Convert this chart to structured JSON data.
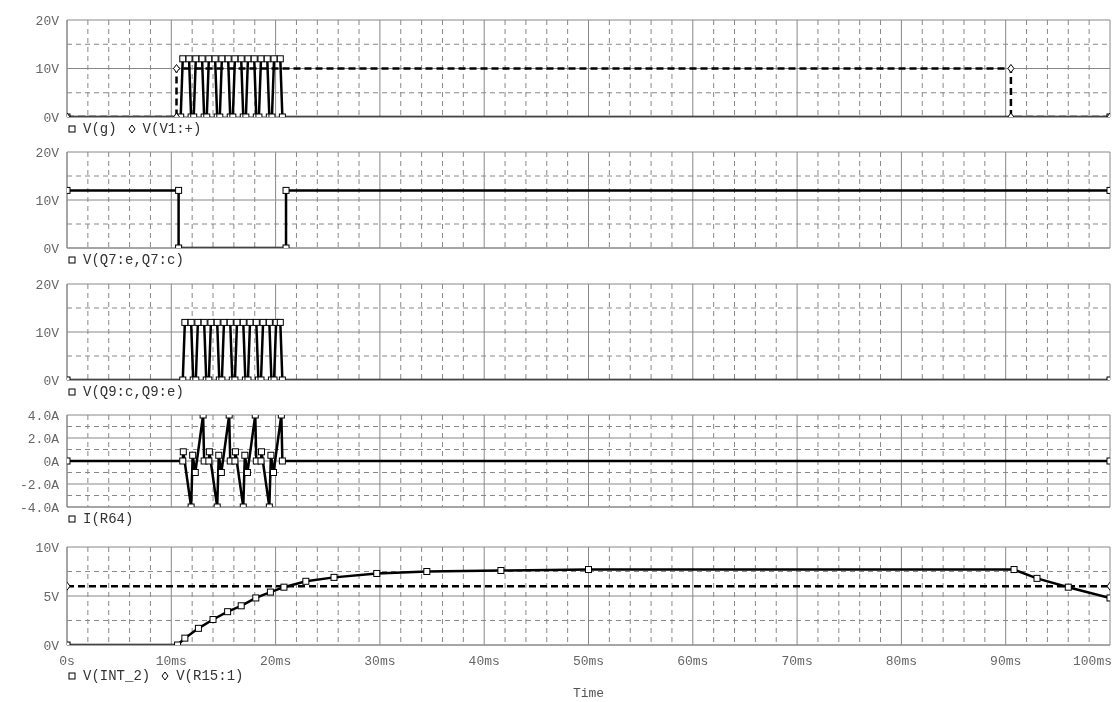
{
  "chart_data": [
    {
      "type": "line",
      "xlim": [
        0,
        100
      ],
      "xticks": [
        0,
        2,
        4,
        6,
        8,
        10,
        12,
        14,
        16,
        18,
        20,
        22,
        24,
        26,
        28,
        30,
        32,
        34,
        36,
        38,
        40,
        42,
        44,
        46,
        48,
        50,
        52,
        54,
        56,
        58,
        60,
        62,
        64,
        66,
        68,
        70,
        72,
        74,
        76,
        78,
        80,
        82,
        84,
        86,
        88,
        90,
        92,
        94,
        96,
        98,
        100
      ],
      "ylim": [
        0,
        20
      ],
      "yticks": [
        {
          "value": 0,
          "label": "0V"
        },
        {
          "value": 5,
          "label": null
        },
        {
          "value": 10,
          "label": "10V"
        },
        {
          "value": 15,
          "label": null
        },
        {
          "value": 20,
          "label": "20V"
        }
      ],
      "tick_labels": "y",
      "grid": true,
      "legend": "bottom left",
      "series": [
        {
          "name": "V(g)",
          "color": "#000000",
          "marker": "square",
          "line_style": "solid",
          "x": [
            0,
            10.9,
            11.1,
            11.7,
            11.9,
            12.15,
            12.35,
            12.95,
            13.15,
            13.4,
            13.6,
            14.2,
            14.4,
            14.65,
            14.85,
            15.45,
            15.65,
            15.9,
            16.1,
            16.7,
            16.9,
            17.15,
            17.35,
            17.95,
            18.15,
            18.4,
            18.6,
            19.2,
            19.4,
            19.65,
            19.85,
            20.45,
            20.65,
            100
          ],
          "values": [
            0,
            0,
            12,
            12,
            0,
            0,
            12,
            12,
            0,
            0,
            12,
            12,
            0,
            0,
            12,
            12,
            0,
            0,
            12,
            12,
            0,
            0,
            12,
            12,
            0,
            0,
            12,
            12,
            0,
            0,
            12,
            12,
            0,
            0
          ]
        },
        {
          "name": "V(V1:+)",
          "color": "#000000",
          "marker": "diamond",
          "line_style": "dashed",
          "x": [
            0,
            10.5,
            10.5,
            90.5,
            90.5,
            100
          ],
          "values": [
            0,
            0,
            10,
            10,
            0,
            0
          ]
        }
      ]
    },
    {
      "type": "line",
      "xlim": [
        0,
        100
      ],
      "xticks": [
        0,
        2,
        4,
        6,
        8,
        10,
        12,
        14,
        16,
        18,
        20,
        22,
        24,
        26,
        28,
        30,
        32,
        34,
        36,
        38,
        40,
        42,
        44,
        46,
        48,
        50,
        52,
        54,
        56,
        58,
        60,
        62,
        64,
        66,
        68,
        70,
        72,
        74,
        76,
        78,
        80,
        82,
        84,
        86,
        88,
        90,
        92,
        94,
        96,
        98,
        100
      ],
      "ylim": [
        0,
        20
      ],
      "yticks": [
        {
          "value": 0,
          "label": "0V"
        },
        {
          "value": 5,
          "label": null
        },
        {
          "value": 10,
          "label": "10V"
        },
        {
          "value": 15,
          "label": null
        },
        {
          "value": 20,
          "label": "20V"
        }
      ],
      "tick_labels": "y",
      "grid": true,
      "legend": "bottom left",
      "series": [
        {
          "name": "V(Q7:e,Q7:c)",
          "color": "#000000",
          "marker": "square",
          "line_style": "solid",
          "x": [
            0,
            10.7,
            10.7,
            21.0,
            21.0,
            100
          ],
          "values": [
            12,
            12,
            0,
            0,
            12,
            12
          ]
        }
      ]
    },
    {
      "type": "line",
      "xlim": [
        0,
        100
      ],
      "xticks": [
        0,
        2,
        4,
        6,
        8,
        10,
        12,
        14,
        16,
        18,
        20,
        22,
        24,
        26,
        28,
        30,
        32,
        34,
        36,
        38,
        40,
        42,
        44,
        46,
        48,
        50,
        52,
        54,
        56,
        58,
        60,
        62,
        64,
        66,
        68,
        70,
        72,
        74,
        76,
        78,
        80,
        82,
        84,
        86,
        88,
        90,
        92,
        94,
        96,
        98,
        100
      ],
      "ylim": [
        0,
        20
      ],
      "yticks": [
        {
          "value": 0,
          "label": "0V"
        },
        {
          "value": 5,
          "label": null
        },
        {
          "value": 10,
          "label": "10V"
        },
        {
          "value": 15,
          "label": null
        },
        {
          "value": 20,
          "label": "20V"
        }
      ],
      "tick_labels": "y",
      "grid": true,
      "legend": "bottom left",
      "series": [
        {
          "name": "V(Q9:c,Q9:e)",
          "color": "#000000",
          "marker": "square",
          "line_style": "solid",
          "x": [
            0,
            11.1,
            11.3,
            11.9,
            12.1,
            12.35,
            12.55,
            13.15,
            13.35,
            13.6,
            13.8,
            14.4,
            14.6,
            14.85,
            15.05,
            15.65,
            15.85,
            16.1,
            16.3,
            16.9,
            17.1,
            17.35,
            17.55,
            18.15,
            18.35,
            18.6,
            18.8,
            19.4,
            19.6,
            19.85,
            20.05,
            20.45,
            20.65,
            100
          ],
          "values": [
            0,
            0,
            12,
            12,
            0,
            0,
            12,
            12,
            0,
            0,
            12,
            12,
            0,
            0,
            12,
            12,
            0,
            0,
            12,
            12,
            0,
            0,
            12,
            12,
            0,
            0,
            12,
            12,
            0,
            0,
            12,
            12,
            0,
            0
          ]
        }
      ]
    },
    {
      "type": "line",
      "xlim": [
        0,
        100
      ],
      "xticks": [
        0,
        2,
        4,
        6,
        8,
        10,
        12,
        14,
        16,
        18,
        20,
        22,
        24,
        26,
        28,
        30,
        32,
        34,
        36,
        38,
        40,
        42,
        44,
        46,
        48,
        50,
        52,
        54,
        56,
        58,
        60,
        62,
        64,
        66,
        68,
        70,
        72,
        74,
        76,
        78,
        80,
        82,
        84,
        86,
        88,
        90,
        92,
        94,
        96,
        98,
        100
      ],
      "ylim": [
        -4,
        4
      ],
      "yticks": [
        {
          "value": -4,
          "label": "-4.0A"
        },
        {
          "value": -3,
          "label": null
        },
        {
          "value": -2,
          "label": "-2.0A"
        },
        {
          "value": -1,
          "label": null
        },
        {
          "value": 0,
          "label": "0A"
        },
        {
          "value": 1,
          "label": null
        },
        {
          "value": 2,
          "label": "2.0A"
        },
        {
          "value": 3,
          "label": null
        },
        {
          "value": 4,
          "label": "4.0A"
        }
      ],
      "tick_labels": "y",
      "grid": true,
      "legend": "bottom left",
      "series": [
        {
          "name": "I(R64)",
          "color": "#000000",
          "marker": "square",
          "line_style": "solid",
          "x": [
            0,
            11.1,
            11.15,
            11.9,
            12.05,
            12.3,
            13.05,
            13.15,
            13.6,
            13.65,
            14.4,
            14.55,
            14.8,
            15.55,
            15.65,
            16.1,
            16.15,
            16.9,
            17.05,
            17.3,
            18.05,
            18.15,
            18.6,
            18.65,
            19.4,
            19.55,
            19.8,
            20.55,
            20.65,
            100
          ],
          "values": [
            0,
            0,
            0.8,
            -4,
            0.5,
            -1,
            4,
            0,
            0,
            0.8,
            -4,
            0.5,
            -1,
            4,
            0,
            0,
            0.8,
            -4,
            0.5,
            -1,
            4,
            0,
            0,
            0.8,
            -4,
            0.5,
            -1,
            4,
            0,
            0
          ]
        }
      ]
    },
    {
      "type": "line",
      "xlim": [
        0,
        100
      ],
      "xticks": [
        {
          "value": 0,
          "label": "0s"
        },
        {
          "value": 2,
          "label": null
        },
        {
          "value": 4,
          "label": null
        },
        {
          "value": 6,
          "label": null
        },
        {
          "value": 8,
          "label": null
        },
        {
          "value": 10,
          "label": "10ms"
        },
        {
          "value": 12,
          "label": null
        },
        {
          "value": 14,
          "label": null
        },
        {
          "value": 16,
          "label": null
        },
        {
          "value": 18,
          "label": null
        },
        {
          "value": 20,
          "label": "20ms"
        },
        {
          "value": 22,
          "label": null
        },
        {
          "value": 24,
          "label": null
        },
        {
          "value": 26,
          "label": null
        },
        {
          "value": 28,
          "label": null
        },
        {
          "value": 30,
          "label": "30ms"
        },
        {
          "value": 32,
          "label": null
        },
        {
          "value": 34,
          "label": null
        },
        {
          "value": 36,
          "label": null
        },
        {
          "value": 38,
          "label": null
        },
        {
          "value": 40,
          "label": "40ms"
        },
        {
          "value": 42,
          "label": null
        },
        {
          "value": 44,
          "label": null
        },
        {
          "value": 46,
          "label": null
        },
        {
          "value": 48,
          "label": null
        },
        {
          "value": 50,
          "label": "50ms"
        },
        {
          "value": 52,
          "label": null
        },
        {
          "value": 54,
          "label": null
        },
        {
          "value": 56,
          "label": null
        },
        {
          "value": 58,
          "label": null
        },
        {
          "value": 60,
          "label": "60ms"
        },
        {
          "value": 62,
          "label": null
        },
        {
          "value": 64,
          "label": null
        },
        {
          "value": 66,
          "label": null
        },
        {
          "value": 68,
          "label": null
        },
        {
          "value": 70,
          "label": "70ms"
        },
        {
          "value": 72,
          "label": null
        },
        {
          "value": 74,
          "label": null
        },
        {
          "value": 76,
          "label": null
        },
        {
          "value": 78,
          "label": null
        },
        {
          "value": 80,
          "label": "80ms"
        },
        {
          "value": 82,
          "label": null
        },
        {
          "value": 84,
          "label": null
        },
        {
          "value": 86,
          "label": null
        },
        {
          "value": 88,
          "label": null
        },
        {
          "value": 90,
          "label": "90ms"
        },
        {
          "value": 92,
          "label": null
        },
        {
          "value": 94,
          "label": null
        },
        {
          "value": 96,
          "label": null
        },
        {
          "value": 98,
          "label": null
        },
        {
          "value": 100,
          "label": "100ms"
        }
      ],
      "ylim": [
        0,
        10
      ],
      "yticks": [
        {
          "value": 0,
          "label": "0V"
        },
        {
          "value": 2.5,
          "label": null
        },
        {
          "value": 5,
          "label": "5V"
        },
        {
          "value": 7.5,
          "label": null
        },
        {
          "value": 10,
          "label": "10V"
        }
      ],
      "xlabel": "Time",
      "grid": true,
      "legend": "bottom left",
      "series": [
        {
          "name": "V(INT_2)",
          "color": "#000000",
          "marker": "square",
          "line_style": "solid",
          "x": [
            0,
            10.6,
            11.3,
            12.6,
            14.0,
            15.4,
            16.7,
            18.1,
            19.5,
            20.8,
            22.9,
            25.6,
            29.7,
            34.5,
            41.6,
            50,
            90.8,
            93,
            96,
            100
          ],
          "values": [
            0,
            0,
            0.7,
            1.7,
            2.6,
            3.4,
            4.0,
            4.8,
            5.4,
            5.9,
            6.5,
            6.9,
            7.3,
            7.5,
            7.6,
            7.7,
            7.7,
            6.8,
            5.9,
            4.8
          ]
        },
        {
          "name": "V(R15:1)",
          "color": "#000000",
          "marker": "diamond",
          "line_style": "dashed",
          "x": [
            0,
            100
          ],
          "values": [
            6,
            6
          ]
        }
      ]
    }
  ]
}
